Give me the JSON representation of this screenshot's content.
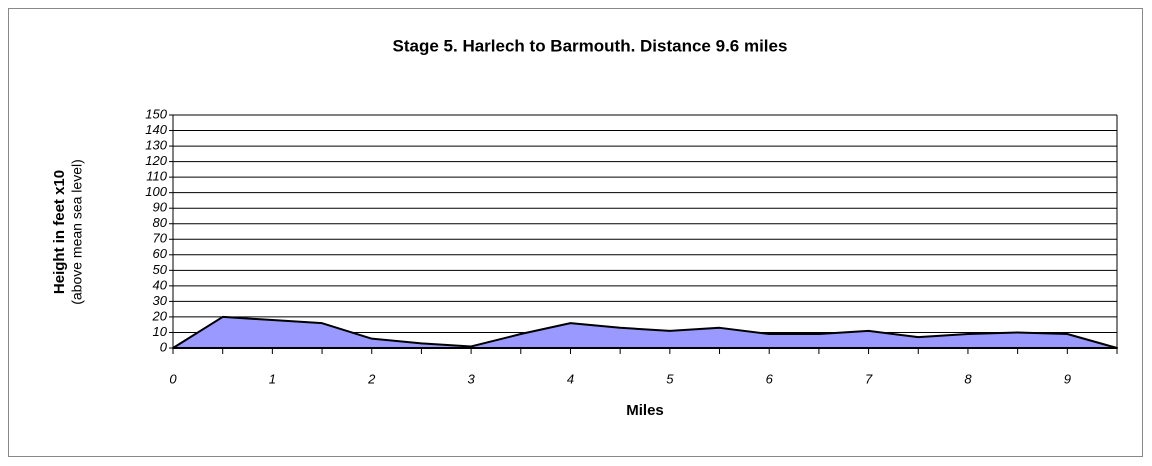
{
  "chart_data": {
    "type": "area",
    "title": "Stage 5. Harlech to Barmouth.   Distance 9.6 miles",
    "x_label": "Miles",
    "y_label": "Height in feet x10",
    "y_sublabel": "(above mean sea level)",
    "x": [
      0,
      0.5,
      1,
      1.5,
      2,
      2.5,
      3,
      3.5,
      4,
      4.5,
      5,
      5.5,
      6,
      6.5,
      7,
      7.5,
      8,
      8.5,
      9,
      9.5
    ],
    "values": [
      0,
      20,
      18,
      16,
      6,
      3,
      1,
      9,
      16,
      13,
      11,
      13,
      9,
      9,
      11,
      7,
      9,
      10,
      9,
      0
    ],
    "color": "#9999ff",
    "xlim": [
      0,
      9.5
    ],
    "xticks": [
      0,
      1,
      2,
      3,
      4,
      5,
      6,
      7,
      8,
      9
    ],
    "ylim": [
      0,
      150
    ],
    "yticks": [
      0,
      10,
      20,
      30,
      40,
      50,
      60,
      70,
      80,
      90,
      100,
      110,
      120,
      130,
      140,
      150
    ],
    "grid": true
  }
}
